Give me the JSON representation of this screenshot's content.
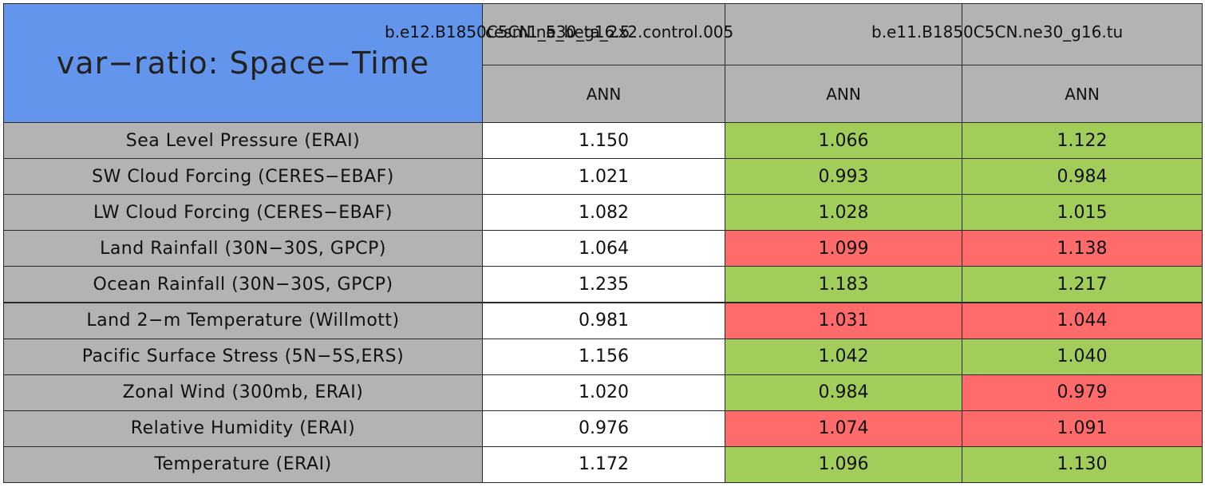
{
  "chart_data": {
    "type": "table",
    "title": "var−ratio: Space−Time",
    "columns": [
      {
        "case": "b.e12.B1850C5CN.ne30_g16.5",
        "period": "ANN"
      },
      {
        "case": "cesm1_5_beta_2x2.control.005",
        "period": "ANN"
      },
      {
        "case": "b.e11.B1850C5CN.ne30_g16.tu",
        "period": "ANN"
      }
    ],
    "rows": [
      {
        "label": "Sea Level Pressure (ERAI)",
        "values": [
          "1.150",
          "1.066",
          "1.122"
        ],
        "status": [
          "none",
          "better",
          "better"
        ]
      },
      {
        "label": "SW Cloud Forcing (CERES−EBAF)",
        "values": [
          "1.021",
          "0.993",
          "0.984"
        ],
        "status": [
          "none",
          "better",
          "better"
        ]
      },
      {
        "label": "LW Cloud Forcing (CERES−EBAF)",
        "values": [
          "1.082",
          "1.028",
          "1.015"
        ],
        "status": [
          "none",
          "better",
          "better"
        ]
      },
      {
        "label": "Land Rainfall (30N−30S, GPCP)",
        "values": [
          "1.064",
          "1.099",
          "1.138"
        ],
        "status": [
          "none",
          "worse",
          "worse"
        ]
      },
      {
        "label": "Ocean Rainfall (30N−30S, GPCP)",
        "values": [
          "1.235",
          "1.183",
          "1.217"
        ],
        "status": [
          "none",
          "better",
          "better"
        ]
      },
      {
        "label": "Land 2−m Temperature (Willmott)",
        "values": [
          "0.981",
          "1.031",
          "1.044"
        ],
        "status": [
          "none",
          "worse",
          "worse"
        ]
      },
      {
        "label": "Pacific Surface Stress (5N−5S,ERS)",
        "values": [
          "1.156",
          "1.042",
          "1.040"
        ],
        "status": [
          "none",
          "better",
          "better"
        ]
      },
      {
        "label": "Zonal Wind (300mb, ERAI)",
        "values": [
          "1.020",
          "0.984",
          "0.979"
        ],
        "status": [
          "none",
          "better",
          "worse"
        ]
      },
      {
        "label": "Relative Humidity (ERAI)",
        "values": [
          "0.976",
          "1.074",
          "1.091"
        ],
        "status": [
          "none",
          "worse",
          "worse"
        ]
      },
      {
        "label": "Temperature (ERAI)",
        "values": [
          "1.172",
          "1.096",
          "1.130"
        ],
        "status": [
          "none",
          "better",
          "better"
        ]
      }
    ],
    "colors": {
      "title_bg": "#6495ed",
      "header_bg": "#b3b3b3",
      "better": "#a2cd5a",
      "worse": "#ff6b6b",
      "none": "#ffffff"
    }
  }
}
